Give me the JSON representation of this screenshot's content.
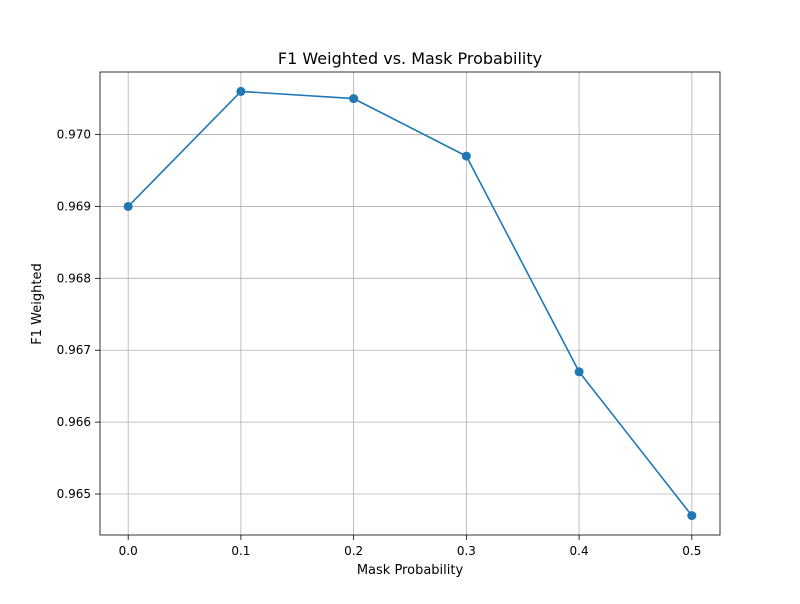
{
  "chart_data": {
    "type": "line",
    "title": "F1 Weighted vs. Mask Probability",
    "xlabel": "Mask Probability",
    "ylabel": "F1 Weighted",
    "x": [
      0.0,
      0.1,
      0.2,
      0.3,
      0.4,
      0.5
    ],
    "series": [
      {
        "values": [
          0.969,
          0.9706,
          0.9705,
          0.9697,
          0.9667,
          0.9647
        ],
        "color": "#1f77b4",
        "marker": "circle"
      }
    ],
    "xlim": [
      -0.025,
      0.525
    ],
    "ylim": [
      0.96443,
      0.97087
    ],
    "x_ticks": [
      "0.0",
      "0.1",
      "0.2",
      "0.3",
      "0.4",
      "0.5"
    ],
    "y_ticks": [
      "0.965",
      "0.966",
      "0.967",
      "0.968",
      "0.969",
      "0.970"
    ],
    "grid": true,
    "grid_color": "#b0b0b0",
    "legend": "none"
  }
}
